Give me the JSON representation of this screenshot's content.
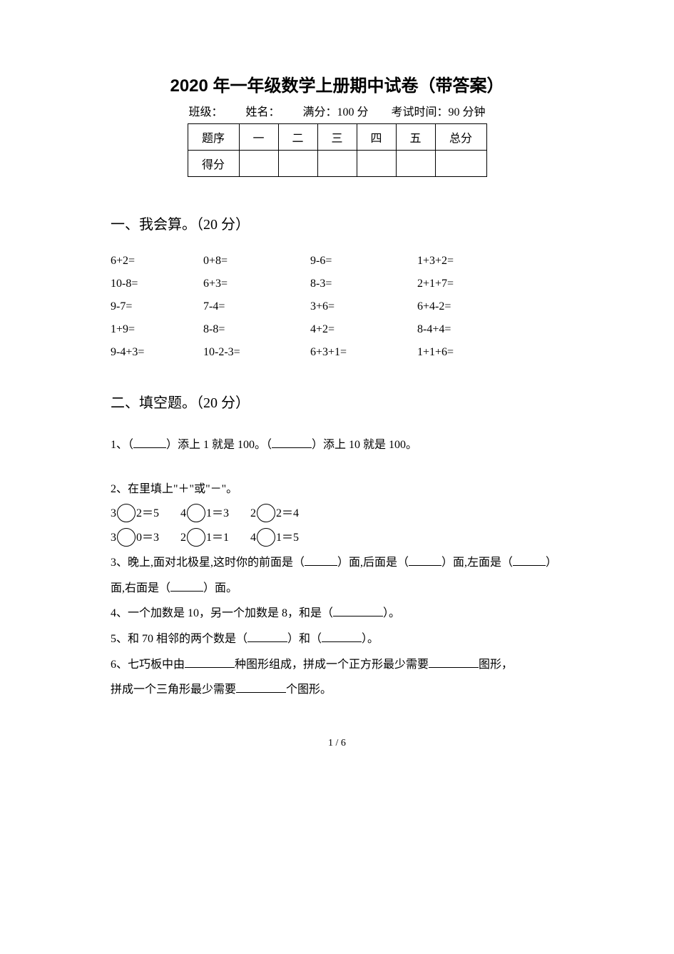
{
  "title": "2020 年一年级数学上册期中试卷（带答案）",
  "meta": {
    "class_label": "班级：",
    "name_label": "姓名：",
    "full_marks": "满分：100 分",
    "exam_time": "考试时间：90 分钟"
  },
  "score_table": {
    "row1": [
      "题序",
      "一",
      "二",
      "三",
      "四",
      "五",
      "总分"
    ],
    "row2_head": "得分"
  },
  "section1": {
    "heading": "一、我会算。（20 分）",
    "rows": [
      [
        "6+2=",
        "0+8=",
        "9-6=",
        "1+3+2="
      ],
      [
        "10-8=",
        "6+3=",
        "8-3=",
        "2+1+7="
      ],
      [
        "9-7=",
        "7-4=",
        "3+6=",
        "6+4-2="
      ],
      [
        "1+9=",
        "8-8=",
        "4+2=",
        "8-4+4="
      ],
      [
        "9-4+3=",
        "10-2-3=",
        "6+3+1=",
        "1+1+6="
      ]
    ]
  },
  "section2": {
    "heading": "二、填空题。（20 分）",
    "q1_a": "1、（",
    "q1_b": "）添上 1 就是 100。（",
    "q1_c": "）添上 10 就是 100。",
    "q2_head": "2、在里填上\"＋\"或\"－\"。",
    "q2_rows": [
      [
        {
          "l": "3",
          "r": "2＝5"
        },
        {
          "l": "4",
          "r": "1＝3"
        },
        {
          "l": "2",
          "r": "2＝4"
        }
      ],
      [
        {
          "l": "3",
          "r": "0＝3"
        },
        {
          "l": "2",
          "r": "1＝1"
        },
        {
          "l": "4",
          "r": "1＝5"
        }
      ]
    ],
    "q3_a": "3、晚上,面对北极星,这时你的前面是（",
    "q3_b": "）面,后面是（",
    "q3_c": "）面,左面是（",
    "q3_d": "）",
    "q3_e": "面,右面是（",
    "q3_f": "）面。",
    "q4_a": "4、一个加数是 10，另一个加数是 8，和是（",
    "q4_b": "）。",
    "q5_a": "5、和 70 相邻的两个数是（",
    "q5_b": "）和（",
    "q5_c": "）。",
    "q6_a": "6、七巧板中由",
    "q6_b": "种图形组成，拼成一个正方形最少需要",
    "q6_c": "图形，",
    "q6_d": "拼成一个三角形最少需要",
    "q6_e": "个图形。"
  },
  "page_num": "1 / 6"
}
